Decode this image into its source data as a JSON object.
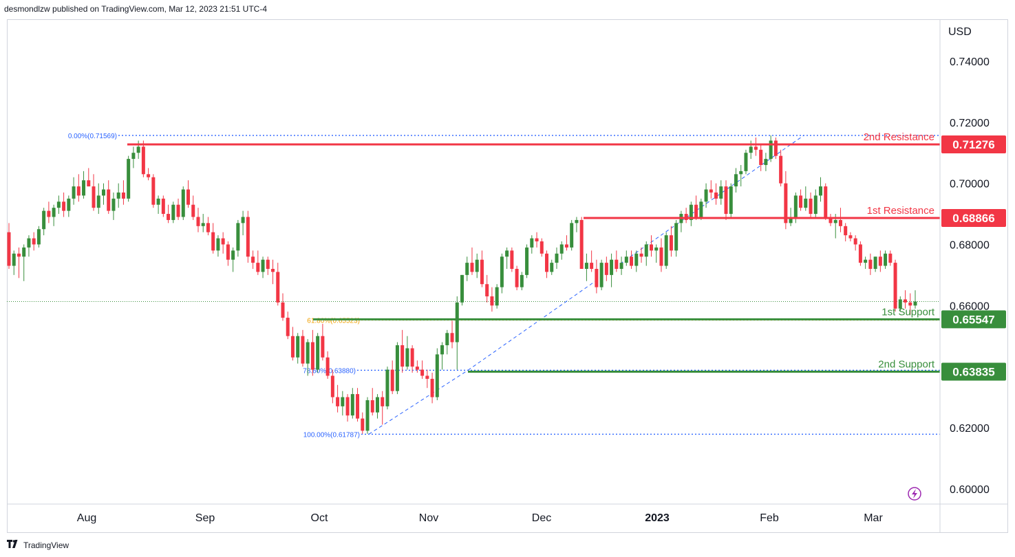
{
  "header": {
    "published_by": "desmondlzw published on TradingView.com, Mar 12, 2023 21:51 UTC-4"
  },
  "footer": {
    "brand": "TradingView",
    "logo": "tradingview-logo"
  },
  "chart_data": {
    "type": "candlestick",
    "currency_label": "USD",
    "y_axis": {
      "ylim": [
        0.595,
        0.7535
      ],
      "ticks": [
        "0.74000",
        "0.72000",
        "0.70000",
        "0.68000",
        "0.66000",
        "0.62000",
        "0.60000"
      ]
    },
    "x_axis": {
      "labels": [
        "Aug",
        "Sep",
        "Oct",
        "Nov",
        "Dec",
        "2023",
        "Feb",
        "Mar"
      ]
    },
    "horizontal_levels": [
      {
        "name": "2nd Resistance",
        "value": 0.71276,
        "label": "0.71276",
        "color": "#f23645"
      },
      {
        "name": "1st Resistance",
        "value": 0.68866,
        "label": "0.68866",
        "color": "#f23645"
      },
      {
        "name": "1st Support",
        "value": 0.65547,
        "label": "0.65547",
        "color": "#388e3c"
      },
      {
        "name": "2nd Support",
        "value": 0.63835,
        "label": "0.63835",
        "color": "#388e3c"
      }
    ],
    "fibonacci": [
      {
        "label": "0.00%(0.71569)",
        "value": 0.71569,
        "color": "#2962ff"
      },
      {
        "label": "61.80%(0.65523)",
        "value": 0.65523,
        "color": "#f0a000"
      },
      {
        "label": "78.60%(0.63880)",
        "value": 0.6388,
        "color": "#2962ff"
      },
      {
        "label": "100.00%(0.61787)",
        "value": 0.61787,
        "color": "#2962ff"
      }
    ],
    "last_price": 0.6613,
    "colors": {
      "up": "#388e3c",
      "down": "#f23645",
      "grid": "#f0f3fa"
    },
    "candles": [
      [
        0.684,
        0.687,
        0.672,
        0.673
      ],
      [
        0.673,
        0.678,
        0.67,
        0.677
      ],
      [
        0.677,
        0.679,
        0.669,
        0.676
      ],
      [
        0.676,
        0.68,
        0.668,
        0.679
      ],
      [
        0.679,
        0.683,
        0.676,
        0.682
      ],
      [
        0.682,
        0.684,
        0.678,
        0.68
      ],
      [
        0.68,
        0.686,
        0.679,
        0.685
      ],
      [
        0.685,
        0.692,
        0.683,
        0.691
      ],
      [
        0.691,
        0.694,
        0.687,
        0.689
      ],
      [
        0.689,
        0.693,
        0.686,
        0.692
      ],
      [
        0.692,
        0.696,
        0.69,
        0.694
      ],
      [
        0.694,
        0.697,
        0.689,
        0.691
      ],
      [
        0.691,
        0.696,
        0.689,
        0.695
      ],
      [
        0.695,
        0.702,
        0.693,
        0.699
      ],
      [
        0.699,
        0.703,
        0.694,
        0.696
      ],
      [
        0.696,
        0.704,
        0.695,
        0.701
      ],
      [
        0.701,
        0.705,
        0.699,
        0.699
      ],
      [
        0.699,
        0.703,
        0.691,
        0.692
      ],
      [
        0.692,
        0.7,
        0.69,
        0.696
      ],
      [
        0.696,
        0.7,
        0.693,
        0.698
      ],
      [
        0.698,
        0.701,
        0.69,
        0.691
      ],
      [
        0.691,
        0.697,
        0.688,
        0.695
      ],
      [
        0.695,
        0.7,
        0.692,
        0.697
      ],
      [
        0.697,
        0.701,
        0.693,
        0.695
      ],
      [
        0.695,
        0.709,
        0.694,
        0.708
      ],
      [
        0.708,
        0.712,
        0.705,
        0.71
      ],
      [
        0.71,
        0.714,
        0.708,
        0.712
      ],
      [
        0.712,
        0.714,
        0.702,
        0.703
      ],
      [
        0.703,
        0.705,
        0.701,
        0.702
      ],
      [
        0.702,
        0.703,
        0.692,
        0.693
      ],
      [
        0.693,
        0.696,
        0.69,
        0.695
      ],
      [
        0.695,
        0.696,
        0.689,
        0.69
      ],
      [
        0.69,
        0.693,
        0.687,
        0.688
      ],
      [
        0.688,
        0.694,
        0.687,
        0.693
      ],
      [
        0.693,
        0.695,
        0.688,
        0.689
      ],
      [
        0.689,
        0.699,
        0.688,
        0.698
      ],
      [
        0.698,
        0.701,
        0.692,
        0.693
      ],
      [
        0.693,
        0.696,
        0.688,
        0.689
      ],
      [
        0.689,
        0.692,
        0.684,
        0.686
      ],
      [
        0.686,
        0.69,
        0.684,
        0.687
      ],
      [
        0.687,
        0.689,
        0.683,
        0.684
      ],
      [
        0.684,
        0.687,
        0.677,
        0.678
      ],
      [
        0.678,
        0.683,
        0.676,
        0.682
      ],
      [
        0.682,
        0.684,
        0.677,
        0.68
      ],
      [
        0.68,
        0.681,
        0.673,
        0.675
      ],
      [
        0.675,
        0.679,
        0.671,
        0.678
      ],
      [
        0.678,
        0.688,
        0.676,
        0.687
      ],
      [
        0.687,
        0.691,
        0.683,
        0.689
      ],
      [
        0.689,
        0.691,
        0.674,
        0.676
      ],
      [
        0.676,
        0.678,
        0.672,
        0.674
      ],
      [
        0.674,
        0.678,
        0.67,
        0.671
      ],
      [
        0.671,
        0.676,
        0.669,
        0.675
      ],
      [
        0.675,
        0.676,
        0.67,
        0.672
      ],
      [
        0.672,
        0.675,
        0.667,
        0.671
      ],
      [
        0.671,
        0.674,
        0.66,
        0.661
      ],
      [
        0.661,
        0.664,
        0.655,
        0.656
      ],
      [
        0.656,
        0.658,
        0.649,
        0.65
      ],
      [
        0.65,
        0.653,
        0.642,
        0.643
      ],
      [
        0.643,
        0.651,
        0.641,
        0.65
      ],
      [
        0.65,
        0.652,
        0.64,
        0.641
      ],
      [
        0.641,
        0.649,
        0.637,
        0.648
      ],
      [
        0.648,
        0.652,
        0.637,
        0.639
      ],
      [
        0.639,
        0.651,
        0.638,
        0.65
      ],
      [
        0.65,
        0.654,
        0.642,
        0.643
      ],
      [
        0.643,
        0.645,
        0.636,
        0.637
      ],
      [
        0.637,
        0.639,
        0.628,
        0.63
      ],
      [
        0.63,
        0.634,
        0.625,
        0.627
      ],
      [
        0.627,
        0.632,
        0.624,
        0.63
      ],
      [
        0.63,
        0.631,
        0.622,
        0.624
      ],
      [
        0.624,
        0.633,
        0.623,
        0.631
      ],
      [
        0.631,
        0.633,
        0.622,
        0.623
      ],
      [
        0.623,
        0.625,
        0.618,
        0.619
      ],
      [
        0.619,
        0.63,
        0.618,
        0.629
      ],
      [
        0.629,
        0.633,
        0.624,
        0.625
      ],
      [
        0.625,
        0.631,
        0.623,
        0.63
      ],
      [
        0.63,
        0.632,
        0.621,
        0.627
      ],
      [
        0.627,
        0.64,
        0.626,
        0.639
      ],
      [
        0.639,
        0.642,
        0.631,
        0.632
      ],
      [
        0.632,
        0.648,
        0.631,
        0.647
      ],
      [
        0.647,
        0.652,
        0.638,
        0.64
      ],
      [
        0.64,
        0.65,
        0.639,
        0.646
      ],
      [
        0.646,
        0.647,
        0.638,
        0.64
      ],
      [
        0.64,
        0.642,
        0.638,
        0.639
      ],
      [
        0.639,
        0.642,
        0.636,
        0.637
      ],
      [
        0.637,
        0.639,
        0.633,
        0.636
      ],
      [
        0.636,
        0.638,
        0.628,
        0.63
      ],
      [
        0.63,
        0.646,
        0.629,
        0.644
      ],
      [
        0.644,
        0.648,
        0.639,
        0.647
      ],
      [
        0.647,
        0.652,
        0.644,
        0.651
      ],
      [
        0.651,
        0.655,
        0.646,
        0.648
      ],
      [
        0.648,
        0.663,
        0.639,
        0.661
      ],
      [
        0.661,
        0.67,
        0.66,
        0.67
      ],
      [
        0.67,
        0.676,
        0.668,
        0.674
      ],
      [
        0.674,
        0.679,
        0.67,
        0.671
      ],
      [
        0.671,
        0.677,
        0.669,
        0.675
      ],
      [
        0.675,
        0.678,
        0.666,
        0.667
      ],
      [
        0.667,
        0.67,
        0.661,
        0.663
      ],
      [
        0.663,
        0.666,
        0.658,
        0.66
      ],
      [
        0.66,
        0.667,
        0.659,
        0.666
      ],
      [
        0.666,
        0.677,
        0.664,
        0.676
      ],
      [
        0.676,
        0.679,
        0.672,
        0.678
      ],
      [
        0.678,
        0.679,
        0.671,
        0.672
      ],
      [
        0.672,
        0.673,
        0.665,
        0.666
      ],
      [
        0.666,
        0.671,
        0.665,
        0.67
      ],
      [
        0.67,
        0.68,
        0.669,
        0.679
      ],
      [
        0.679,
        0.683,
        0.677,
        0.682
      ],
      [
        0.682,
        0.684,
        0.679,
        0.681
      ],
      [
        0.681,
        0.682,
        0.676,
        0.677
      ],
      [
        0.677,
        0.678,
        0.669,
        0.671
      ],
      [
        0.671,
        0.675,
        0.67,
        0.674
      ],
      [
        0.674,
        0.679,
        0.672,
        0.677
      ],
      [
        0.677,
        0.681,
        0.675,
        0.68
      ],
      [
        0.68,
        0.683,
        0.678,
        0.679
      ],
      [
        0.679,
        0.688,
        0.678,
        0.687
      ],
      [
        0.687,
        0.689,
        0.684,
        0.688
      ],
      [
        0.688,
        0.689,
        0.672,
        0.672
      ],
      [
        0.672,
        0.677,
        0.668,
        0.674
      ],
      [
        0.674,
        0.678,
        0.671,
        0.672
      ],
      [
        0.672,
        0.675,
        0.664,
        0.666
      ],
      [
        0.666,
        0.675,
        0.665,
        0.674
      ],
      [
        0.674,
        0.676,
        0.668,
        0.67
      ],
      [
        0.67,
        0.677,
        0.666,
        0.675
      ],
      [
        0.675,
        0.678,
        0.671,
        0.672
      ],
      [
        0.672,
        0.676,
        0.67,
        0.674
      ],
      [
        0.674,
        0.678,
        0.673,
        0.676
      ],
      [
        0.676,
        0.678,
        0.672,
        0.673
      ],
      [
        0.673,
        0.678,
        0.671,
        0.677
      ],
      [
        0.677,
        0.679,
        0.674,
        0.676
      ],
      [
        0.676,
        0.681,
        0.673,
        0.68
      ],
      [
        0.68,
        0.683,
        0.676,
        0.678
      ],
      [
        0.678,
        0.68,
        0.674,
        0.679
      ],
      [
        0.679,
        0.682,
        0.671,
        0.673
      ],
      [
        0.673,
        0.684,
        0.672,
        0.683
      ],
      [
        0.683,
        0.686,
        0.676,
        0.678
      ],
      [
        0.678,
        0.688,
        0.676,
        0.687
      ],
      [
        0.687,
        0.691,
        0.684,
        0.69
      ],
      [
        0.69,
        0.692,
        0.687,
        0.688
      ],
      [
        0.688,
        0.694,
        0.686,
        0.693
      ],
      [
        0.693,
        0.696,
        0.688,
        0.689
      ],
      [
        0.689,
        0.695,
        0.688,
        0.694
      ],
      [
        0.694,
        0.7,
        0.692,
        0.698
      ],
      [
        0.698,
        0.701,
        0.695,
        0.697
      ],
      [
        0.697,
        0.7,
        0.693,
        0.695
      ],
      [
        0.695,
        0.701,
        0.693,
        0.699
      ],
      [
        0.699,
        0.701,
        0.688,
        0.69
      ],
      [
        0.69,
        0.7,
        0.689,
        0.699
      ],
      [
        0.699,
        0.705,
        0.697,
        0.703
      ],
      [
        0.703,
        0.706,
        0.699,
        0.704
      ],
      [
        0.704,
        0.711,
        0.703,
        0.71
      ],
      [
        0.71,
        0.714,
        0.708,
        0.712
      ],
      [
        0.712,
        0.715,
        0.709,
        0.711
      ],
      [
        0.711,
        0.713,
        0.704,
        0.706
      ],
      [
        0.706,
        0.71,
        0.704,
        0.708
      ],
      [
        0.708,
        0.7157,
        0.707,
        0.714
      ],
      [
        0.714,
        0.715,
        0.708,
        0.709
      ],
      [
        0.709,
        0.711,
        0.699,
        0.7
      ],
      [
        0.7,
        0.704,
        0.685,
        0.687
      ],
      [
        0.687,
        0.692,
        0.686,
        0.689
      ],
      [
        0.689,
        0.697,
        0.687,
        0.696
      ],
      [
        0.696,
        0.698,
        0.691,
        0.692
      ],
      [
        0.692,
        0.699,
        0.691,
        0.695
      ],
      [
        0.695,
        0.697,
        0.689,
        0.69
      ],
      [
        0.69,
        0.698,
        0.689,
        0.696
      ],
      [
        0.696,
        0.702,
        0.694,
        0.699
      ],
      [
        0.699,
        0.7,
        0.688,
        0.689
      ],
      [
        0.689,
        0.69,
        0.686,
        0.687
      ],
      [
        0.687,
        0.69,
        0.682,
        0.688
      ],
      [
        0.688,
        0.692,
        0.684,
        0.686
      ],
      [
        0.686,
        0.687,
        0.681,
        0.683
      ],
      [
        0.683,
        0.684,
        0.681,
        0.682
      ],
      [
        0.682,
        0.683,
        0.678,
        0.68
      ],
      [
        0.68,
        0.681,
        0.673,
        0.674
      ],
      [
        0.674,
        0.676,
        0.672,
        0.675
      ],
      [
        0.675,
        0.677,
        0.67,
        0.672
      ],
      [
        0.672,
        0.676,
        0.671,
        0.676
      ],
      [
        0.676,
        0.678,
        0.671,
        0.673
      ],
      [
        0.673,
        0.678,
        0.672,
        0.677
      ],
      [
        0.677,
        0.678,
        0.673,
        0.674
      ],
      [
        0.674,
        0.675,
        0.658,
        0.659
      ],
      [
        0.659,
        0.663,
        0.658,
        0.662
      ],
      [
        0.662,
        0.665,
        0.659,
        0.661
      ],
      [
        0.661,
        0.664,
        0.657,
        0.66
      ],
      [
        0.66,
        0.665,
        0.659,
        0.6613
      ]
    ]
  }
}
